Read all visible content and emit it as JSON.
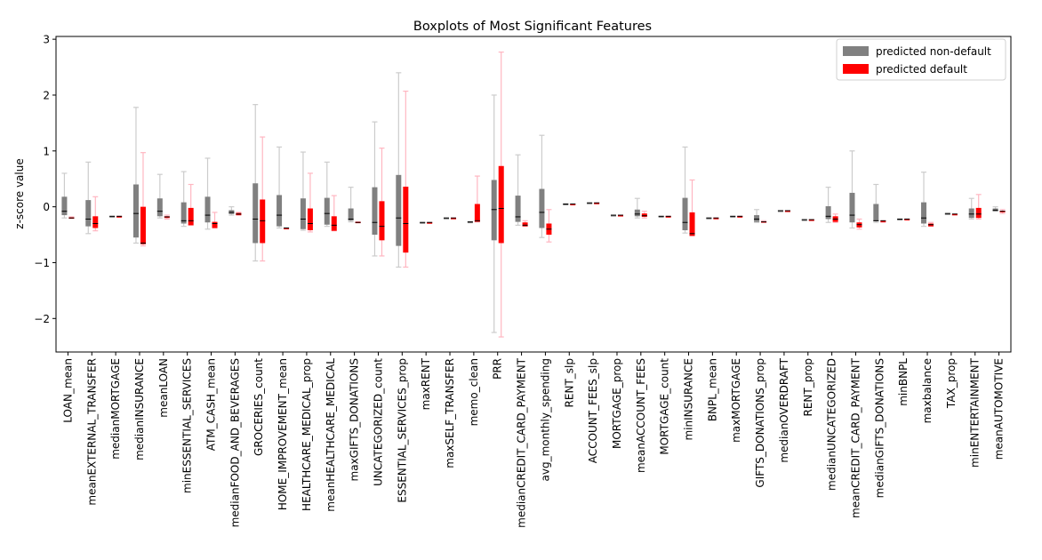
{
  "chart_data": {
    "type": "boxplot",
    "title": "Boxplots of Most Significant Features",
    "xlabel": "",
    "ylabel": "z-score value",
    "ylim": [
      -2.6,
      3.05
    ],
    "yticks": [
      -2,
      -1,
      0,
      1,
      2,
      3
    ],
    "grid": false,
    "legend_position": "top-right",
    "series": [
      {
        "name": "predicted non-default",
        "color": "#808080",
        "whisker_color": "#cccccc"
      },
      {
        "name": "predicted default",
        "color": "#ff0000",
        "whisker_color": "#ffb6c1"
      }
    ],
    "categories": [
      "LOAN_mean",
      "meanEXTERNAL_TRANSFER",
      "medianMORTGAGE",
      "medianINSURANCE",
      "meanLOAN",
      "minESSENTIAL_SERVICES",
      "ATM_CASH_mean",
      "medianFOOD_AND_BEVERAGES",
      "GROCERIES_count",
      "HOME_IMPROVEMENT_mean",
      "HEALTHCARE_MEDICAL_prop",
      "meanHEALTHCARE_MEDICAL",
      "maxGIFTS_DONATIONS",
      "UNCATEGORIZED_count",
      "ESSENTIAL_SERVICES_prop",
      "maxRENT",
      "maxSELF_TRANSFER",
      "memo_clean",
      "PRR",
      "medianCREDIT_CARD_PAYMENT",
      "avg_monthly_spending",
      "RENT_slp",
      "ACCOUNT_FEES_slp",
      "MORTGAGE_prop",
      "meanACCOUNT_FEES",
      "MORTGAGE_count",
      "minINSURANCE",
      "BNPL_mean",
      "maxMORTGAGE",
      "GIFTS_DONATIONS_prop",
      "medianOVERDRAFT",
      "RENT_prop",
      "medianUNCATEGORIZED",
      "meanCREDIT_CARD_PAYMENT",
      "medianGIFTS_DONATIONS",
      "minBNPL",
      "maxbalance",
      "TAX_prop",
      "minENTERTAINMENT",
      "meanAUTOMOTIVE"
    ],
    "boxes_non_default": [
      [
        -0.2,
        -0.15,
        -0.08,
        0.18,
        0.6
      ],
      [
        -0.48,
        -0.35,
        -0.22,
        0.12,
        0.8
      ],
      [
        -0.17,
        -0.17,
        -0.17,
        -0.17,
        -0.17
      ],
      [
        -0.65,
        -0.55,
        -0.12,
        0.4,
        1.78
      ],
      [
        -0.2,
        -0.17,
        -0.08,
        0.15,
        0.58
      ],
      [
        -0.35,
        -0.3,
        -0.25,
        0.08,
        0.63
      ],
      [
        -0.4,
        -0.28,
        -0.15,
        0.18,
        0.87
      ],
      [
        -0.15,
        -0.13,
        -0.1,
        -0.06,
        0.0
      ],
      [
        -0.97,
        -0.65,
        -0.22,
        0.42,
        1.83
      ],
      [
        -0.38,
        -0.35,
        -0.15,
        0.21,
        1.07
      ],
      [
        -0.42,
        -0.4,
        -0.22,
        0.15,
        0.98
      ],
      [
        -0.35,
        -0.32,
        -0.12,
        0.16,
        0.8
      ],
      [
        -0.27,
        -0.25,
        -0.22,
        -0.03,
        0.35
      ],
      [
        -0.88,
        -0.5,
        -0.28,
        0.35,
        1.52
      ],
      [
        -1.08,
        -0.7,
        -0.2,
        0.57,
        2.4
      ],
      [
        -0.28,
        -0.28,
        -0.28,
        -0.28,
        -0.28
      ],
      [
        -0.2,
        -0.2,
        -0.2,
        -0.2,
        -0.2
      ],
      [
        -0.27,
        -0.27,
        -0.27,
        -0.27,
        -0.27
      ],
      [
        -2.25,
        -0.6,
        -0.05,
        0.48,
        2.0
      ],
      [
        -0.33,
        -0.27,
        -0.18,
        0.2,
        0.93
      ],
      [
        -0.55,
        -0.38,
        -0.1,
        0.32,
        1.28
      ],
      [
        0.05,
        0.05,
        0.05,
        0.05,
        0.05
      ],
      [
        0.07,
        0.07,
        0.07,
        0.07,
        0.07
      ],
      [
        -0.15,
        -0.15,
        -0.15,
        -0.15,
        -0.15
      ],
      [
        -0.2,
        -0.17,
        -0.13,
        -0.05,
        0.15
      ],
      [
        -0.17,
        -0.17,
        -0.17,
        -0.17,
        -0.17
      ],
      [
        -0.47,
        -0.42,
        -0.28,
        0.16,
        1.07
      ],
      [
        -0.2,
        -0.2,
        -0.2,
        -0.2,
        -0.2
      ],
      [
        -0.17,
        -0.17,
        -0.17,
        -0.17,
        -0.17
      ],
      [
        -0.28,
        -0.27,
        -0.22,
        -0.15,
        -0.05
      ],
      [
        -0.07,
        -0.07,
        -0.07,
        -0.07,
        -0.07
      ],
      [
        -0.23,
        -0.23,
        -0.23,
        -0.23,
        -0.23
      ],
      [
        -0.28,
        -0.22,
        -0.17,
        0.01,
        0.35
      ],
      [
        -0.38,
        -0.28,
        -0.15,
        0.25,
        1.0
      ],
      [
        -0.28,
        -0.26,
        -0.25,
        0.05,
        0.4
      ],
      [
        -0.22,
        -0.22,
        -0.22,
        -0.22,
        -0.22
      ],
      [
        -0.35,
        -0.3,
        -0.2,
        0.08,
        0.62
      ],
      [
        -0.14,
        -0.14,
        -0.12,
        -0.12,
        -0.12
      ],
      [
        -0.22,
        -0.2,
        -0.13,
        -0.03,
        0.15
      ],
      [
        -0.08,
        -0.08,
        -0.06,
        -0.03,
        0.0
      ]
    ],
    "boxes_default": [
      [
        -0.2,
        -0.2,
        -0.2,
        -0.19,
        -0.18
      ],
      [
        -0.43,
        -0.38,
        -0.3,
        -0.17,
        0.18
      ],
      [
        -0.17,
        -0.17,
        -0.17,
        -0.17,
        -0.17
      ],
      [
        -0.7,
        -0.67,
        -0.65,
        0.0,
        0.97
      ],
      [
        -0.22,
        -0.2,
        -0.18,
        -0.17,
        -0.15
      ],
      [
        -0.33,
        -0.33,
        -0.25,
        -0.02,
        0.4
      ],
      [
        -0.38,
        -0.38,
        -0.3,
        -0.27,
        -0.1
      ],
      [
        -0.15,
        -0.15,
        -0.13,
        -0.11,
        -0.1
      ],
      [
        -0.97,
        -0.65,
        -0.25,
        0.13,
        1.25
      ],
      [
        -0.38,
        -0.38,
        -0.38,
        -0.38,
        -0.38
      ],
      [
        -0.45,
        -0.42,
        -0.3,
        -0.03,
        0.6
      ],
      [
        -0.43,
        -0.43,
        -0.33,
        -0.17,
        0.2
      ],
      [
        -0.28,
        -0.28,
        -0.28,
        -0.27,
        -0.27
      ],
      [
        -0.88,
        -0.6,
        -0.35,
        0.1,
        1.05
      ],
      [
        -1.08,
        -0.82,
        -0.3,
        0.36,
        2.07
      ],
      [
        -0.28,
        -0.28,
        -0.28,
        -0.28,
        -0.28
      ],
      [
        -0.2,
        -0.2,
        -0.2,
        -0.2,
        -0.2
      ],
      [
        -0.27,
        -0.27,
        -0.25,
        0.05,
        0.55
      ],
      [
        -2.33,
        -0.65,
        -0.03,
        0.73,
        2.77
      ],
      [
        -0.35,
        -0.35,
        -0.33,
        -0.28,
        -0.25
      ],
      [
        -0.63,
        -0.5,
        -0.4,
        -0.3,
        -0.05
      ],
      [
        0.05,
        0.05,
        0.05,
        0.05,
        0.05
      ],
      [
        0.07,
        0.07,
        0.07,
        0.07,
        0.07
      ],
      [
        -0.15,
        -0.15,
        -0.15,
        -0.15,
        -0.15
      ],
      [
        -0.2,
        -0.18,
        -0.16,
        -0.12,
        -0.08
      ],
      [
        -0.17,
        -0.17,
        -0.17,
        -0.17,
        -0.17
      ],
      [
        -0.52,
        -0.52,
        -0.48,
        -0.1,
        0.48
      ],
      [
        -0.2,
        -0.2,
        -0.2,
        -0.2,
        -0.2
      ],
      [
        -0.17,
        -0.17,
        -0.17,
        -0.17,
        -0.17
      ],
      [
        -0.28,
        -0.28,
        -0.27,
        -0.26,
        -0.25
      ],
      [
        -0.07,
        -0.07,
        -0.07,
        -0.07,
        -0.07
      ],
      [
        -0.23,
        -0.23,
        -0.23,
        -0.23,
        -0.23
      ],
      [
        -0.28,
        -0.27,
        -0.22,
        -0.17,
        -0.13
      ],
      [
        -0.4,
        -0.37,
        -0.32,
        -0.28,
        -0.22
      ],
      [
        -0.28,
        -0.27,
        -0.25,
        -0.25,
        -0.25
      ],
      [
        -0.22,
        -0.22,
        -0.22,
        -0.22,
        -0.22
      ],
      [
        -0.35,
        -0.35,
        -0.32,
        -0.3,
        -0.28
      ],
      [
        -0.14,
        -0.14,
        -0.13,
        -0.13,
        -0.13
      ],
      [
        -0.22,
        -0.2,
        -0.13,
        -0.02,
        0.22
      ],
      [
        -0.12,
        -0.1,
        -0.08,
        -0.07,
        -0.05
      ]
    ]
  }
}
